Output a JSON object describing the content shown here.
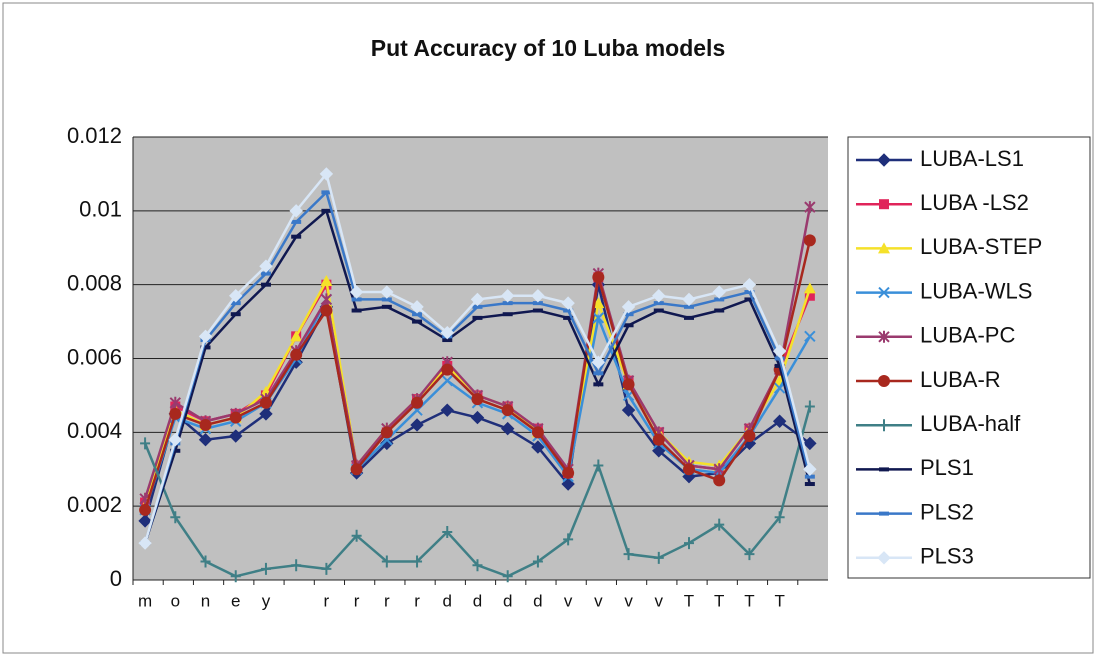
{
  "chart_data": {
    "type": "line",
    "title": "Put Accuracy of 10 Luba models",
    "categories": [
      "m",
      "o",
      "n",
      "e",
      "y",
      null,
      "r",
      "r",
      "r",
      "r",
      "d",
      "d",
      "d",
      "d",
      "v",
      "v",
      "v",
      "v",
      "T",
      "T",
      "T",
      "T",
      null
    ],
    "ylim": [
      0,
      0.012
    ],
    "yticks": [
      0,
      0.002,
      0.004,
      0.006,
      0.008,
      0.01,
      0.012
    ],
    "grid": true,
    "legend": "right",
    "series": [
      {
        "name": "LUBA-LS1",
        "color": "#1f2f7a",
        "marker": "diamond",
        "values": [
          0.0016,
          0.0045,
          0.0038,
          0.0039,
          0.0045,
          0.0059,
          0.0074,
          0.0029,
          0.0037,
          0.0042,
          0.0046,
          0.0044,
          0.0041,
          0.0036,
          0.0026,
          0.008,
          0.0046,
          0.0035,
          0.0028,
          0.0029,
          0.0037,
          0.0043,
          0.0037
        ]
      },
      {
        "name": "LUBA -LS2",
        "color": "#e0245a",
        "marker": "square",
        "values": [
          0.0021,
          0.0047,
          0.0043,
          0.0045,
          0.005,
          0.0066,
          0.008,
          0.0031,
          0.004,
          0.0049,
          0.0058,
          0.005,
          0.0047,
          0.0041,
          0.0029,
          0.0082,
          0.0054,
          0.004,
          0.0031,
          0.003,
          0.0041,
          0.0057,
          0.0077
        ]
      },
      {
        "name": "LUBA-STEP",
        "color": "#f5e12a",
        "marker": "triangle",
        "values": [
          0.002,
          0.0046,
          0.0042,
          0.0044,
          0.0051,
          0.0066,
          0.0081,
          0.0031,
          0.0041,
          0.0049,
          0.0058,
          0.005,
          0.0047,
          0.004,
          0.003,
          0.0075,
          0.0053,
          0.004,
          0.0032,
          0.0031,
          0.0041,
          0.0054,
          0.0079
        ]
      },
      {
        "name": "LUBA-WLS",
        "color": "#3a8fd9",
        "marker": "x",
        "values": [
          0.0019,
          0.0044,
          0.0041,
          0.0043,
          0.0048,
          0.006,
          0.0076,
          0.003,
          0.0038,
          0.0046,
          0.0054,
          0.0048,
          0.0045,
          0.0039,
          0.0028,
          0.0071,
          0.005,
          0.0037,
          0.003,
          0.0029,
          0.0039,
          0.0052,
          0.0066
        ]
      },
      {
        "name": "LUBA-PC",
        "color": "#9a3a6e",
        "marker": "star",
        "values": [
          0.0022,
          0.0048,
          0.0043,
          0.0045,
          0.0049,
          0.0062,
          0.0076,
          0.0031,
          0.0041,
          0.0049,
          0.0059,
          0.005,
          0.0047,
          0.0041,
          0.003,
          0.0083,
          0.0054,
          0.004,
          0.0031,
          0.003,
          0.0041,
          0.0057,
          0.0101
        ]
      },
      {
        "name": "LUBA-R",
        "color": "#a8281e",
        "marker": "circle",
        "values": [
          0.0019,
          0.0045,
          0.0042,
          0.0044,
          0.0048,
          0.0061,
          0.0073,
          0.003,
          0.004,
          0.0048,
          0.0057,
          0.0049,
          0.0046,
          0.004,
          0.0029,
          0.0082,
          0.0053,
          0.0038,
          0.003,
          0.0027,
          0.0039,
          0.0057,
          0.0092
        ]
      },
      {
        "name": "LUBA-half",
        "color": "#3f7f86",
        "marker": "plus",
        "values": [
          0.0037,
          0.0017,
          0.0005,
          0.0001,
          0.0003,
          0.0004,
          0.0003,
          0.0012,
          0.0005,
          0.0005,
          0.0013,
          0.0004,
          0.0001,
          0.0005,
          0.0011,
          0.0031,
          0.0007,
          0.0006,
          0.001,
          0.0015,
          0.0007,
          0.0017,
          0.0047
        ]
      },
      {
        "name": "PLS1",
        "color": "#101850",
        "marker": "dash",
        "values": [
          0.001,
          0.0035,
          0.0063,
          0.0072,
          0.008,
          0.0093,
          0.01,
          0.0073,
          0.0074,
          0.007,
          0.0065,
          0.0071,
          0.0072,
          0.0073,
          0.0071,
          0.0053,
          0.0069,
          0.0073,
          0.0071,
          0.0073,
          0.0076,
          0.0058,
          0.0026
        ]
      },
      {
        "name": "PLS2",
        "color": "#3a78c8",
        "marker": "dash",
        "values": [
          0.001,
          0.0037,
          0.0065,
          0.0075,
          0.0083,
          0.0097,
          0.0105,
          0.0076,
          0.0076,
          0.0072,
          0.0066,
          0.0074,
          0.0075,
          0.0075,
          0.0073,
          0.0056,
          0.0072,
          0.0075,
          0.0074,
          0.0076,
          0.0078,
          0.006,
          0.0028
        ]
      },
      {
        "name": "PLS3",
        "color": "#d8e6f6",
        "marker": "diamond",
        "values": [
          0.001,
          0.0038,
          0.0066,
          0.0077,
          0.0085,
          0.01,
          0.011,
          0.0078,
          0.0078,
          0.0074,
          0.0067,
          0.0076,
          0.0077,
          0.0077,
          0.0075,
          0.0059,
          0.0074,
          0.0077,
          0.0076,
          0.0078,
          0.008,
          0.0062,
          0.003
        ]
      }
    ]
  }
}
